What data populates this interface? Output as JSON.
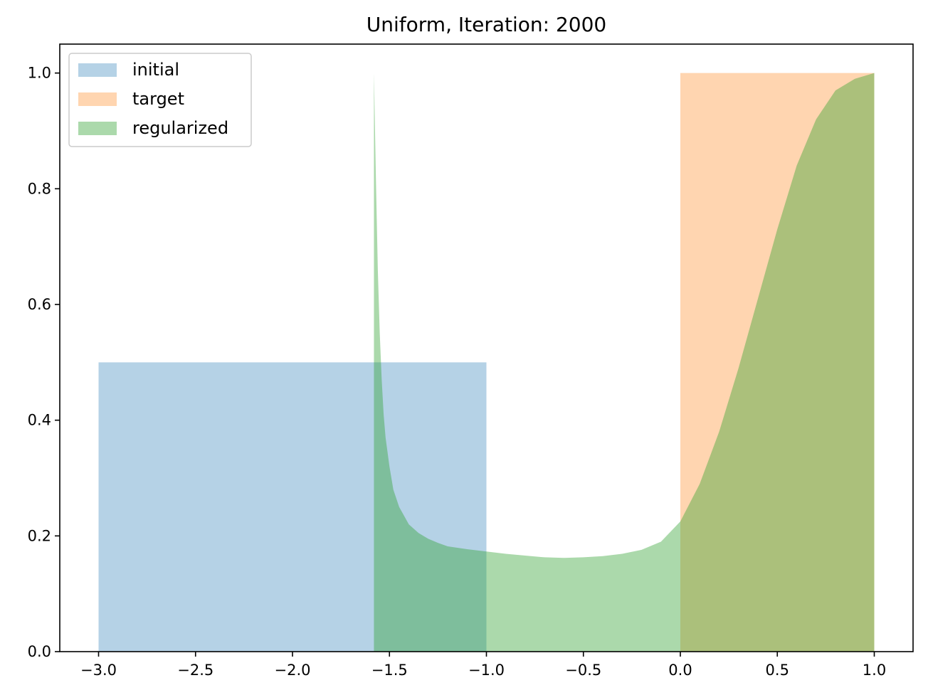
{
  "chart_data": {
    "type": "area",
    "title": "Uniform, Iteration: 2000",
    "xlabel": "",
    "ylabel": "",
    "xlim": [
      -3.2,
      1.2
    ],
    "ylim": [
      0.0,
      1.05
    ],
    "grid": false,
    "legend_placement": "top-left",
    "x_ticks": [
      {
        "value": -3.0,
        "label": "−3.0"
      },
      {
        "value": -2.5,
        "label": "−2.5"
      },
      {
        "value": -2.0,
        "label": "−2.0"
      },
      {
        "value": -1.5,
        "label": "−1.5"
      },
      {
        "value": -1.0,
        "label": "−1.0"
      },
      {
        "value": -0.5,
        "label": "−0.5"
      },
      {
        "value": 0.0,
        "label": "0.0"
      },
      {
        "value": 0.5,
        "label": "0.5"
      },
      {
        "value": 1.0,
        "label": "1.0"
      }
    ],
    "y_ticks": [
      {
        "value": 0.0,
        "label": "0.0"
      },
      {
        "value": 0.2,
        "label": "0.2"
      },
      {
        "value": 0.4,
        "label": "0.4"
      },
      {
        "value": 0.6,
        "label": "0.6"
      },
      {
        "value": 0.8,
        "label": "0.8"
      },
      {
        "value": 1.0,
        "label": "1.0"
      }
    ],
    "series": [
      {
        "name": "initial",
        "color": "#1f77b4",
        "alpha": 0.33,
        "x": [
          -3.0,
          -1.0
        ],
        "y": [
          0.5,
          0.5
        ]
      },
      {
        "name": "target",
        "color": "#ff7f0e",
        "alpha": 0.33,
        "x": [
          0.0,
          1.0
        ],
        "y": [
          1.0,
          1.0
        ]
      },
      {
        "name": "regularized",
        "color": "#2ca02c",
        "alpha": 0.4,
        "x": [
          -1.58,
          -1.57,
          -1.56,
          -1.55,
          -1.54,
          -1.53,
          -1.52,
          -1.5,
          -1.48,
          -1.45,
          -1.4,
          -1.35,
          -1.3,
          -1.25,
          -1.2,
          -1.1,
          -1.0,
          -0.9,
          -0.8,
          -0.7,
          -0.6,
          -0.5,
          -0.4,
          -0.3,
          -0.2,
          -0.1,
          0.0,
          0.1,
          0.2,
          0.3,
          0.4,
          0.5,
          0.6,
          0.7,
          0.8,
          0.9,
          1.0
        ],
        "y": [
          1.0,
          0.82,
          0.66,
          0.55,
          0.47,
          0.41,
          0.37,
          0.32,
          0.28,
          0.25,
          0.22,
          0.205,
          0.195,
          0.188,
          0.182,
          0.177,
          0.173,
          0.169,
          0.166,
          0.163,
          0.162,
          0.163,
          0.165,
          0.169,
          0.176,
          0.19,
          0.225,
          0.29,
          0.38,
          0.49,
          0.61,
          0.73,
          0.84,
          0.92,
          0.97,
          0.99,
          1.0
        ]
      }
    ]
  }
}
